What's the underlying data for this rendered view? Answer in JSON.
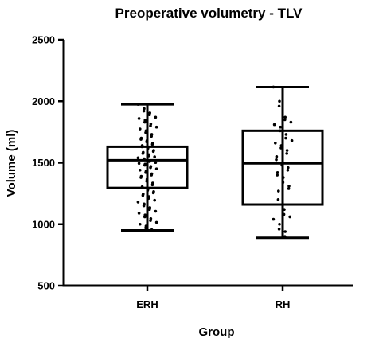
{
  "chart_data": {
    "type": "box",
    "title": "Preoperative volumetry - TLV",
    "xlabel": "Group",
    "ylabel": "Volume (ml)",
    "ylim": [
      500,
      2500
    ],
    "yticks": [
      500,
      1000,
      1500,
      2000,
      2500
    ],
    "categories": [
      "ERH",
      "RH"
    ],
    "boxes": [
      {
        "category": "ERH",
        "min": 950,
        "q1": 1295,
        "median": 1520,
        "q3": 1630,
        "max": 1975,
        "points": [
          1975,
          1940,
          1920,
          1905,
          1890,
          1870,
          1860,
          1845,
          1830,
          1815,
          1800,
          1790,
          1775,
          1760,
          1745,
          1730,
          1715,
          1700,
          1690,
          1680,
          1670,
          1660,
          1650,
          1640,
          1630,
          1620,
          1610,
          1600,
          1592,
          1585,
          1575,
          1565,
          1555,
          1548,
          1540,
          1532,
          1525,
          1518,
          1510,
          1502,
          1495,
          1488,
          1480,
          1470,
          1460,
          1450,
          1440,
          1430,
          1420,
          1410,
          1400,
          1390,
          1380,
          1365,
          1350,
          1335,
          1320,
          1305,
          1295,
          1285,
          1275,
          1265,
          1255,
          1245,
          1235,
          1225,
          1210,
          1195,
          1180,
          1165,
          1150,
          1135,
          1120,
          1105,
          1090,
          1075,
          1060,
          1045,
          1030,
          1015,
          1000,
          985,
          970,
          955
        ]
      },
      {
        "category": "RH",
        "min": 890,
        "q1": 1160,
        "median": 1495,
        "q3": 1760,
        "max": 2115,
        "points": [
          2115,
          2000,
          1960,
          1870,
          1850,
          1830,
          1810,
          1790,
          1760,
          1730,
          1700,
          1680,
          1660,
          1640,
          1620,
          1600,
          1575,
          1550,
          1525,
          1500,
          1480,
          1460,
          1440,
          1420,
          1400,
          1380,
          1340,
          1310,
          1290,
          1270,
          1200,
          1120,
          1080,
          1060,
          1040,
          1000,
          960,
          940,
          900
        ]
      }
    ],
    "grid": false,
    "legend": "none"
  }
}
